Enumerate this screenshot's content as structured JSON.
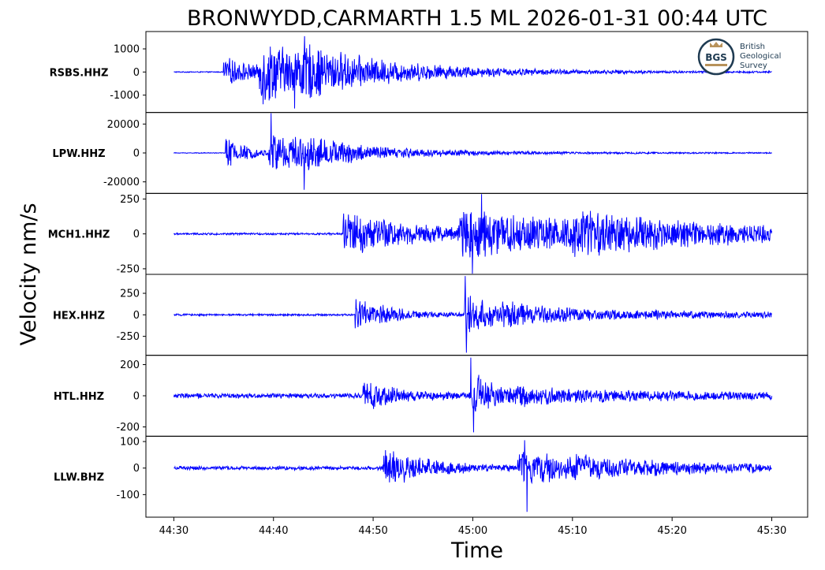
{
  "chart_data": {
    "type": "line",
    "title": "BRONWYDD,CARMARTH 1.5 ML   2026-01-31 00:44 UTC",
    "xlabel": "Time",
    "ylabel": "Velocity nm/s",
    "x_start_seconds": 0,
    "x_end_seconds": 60,
    "xlim_seconds": [
      -2.8,
      63.6
    ],
    "x_ticks": [
      {
        "value": 0,
        "label": "44:30"
      },
      {
        "value": 10,
        "label": "44:40"
      },
      {
        "value": 20,
        "label": "44:50"
      },
      {
        "value": 30,
        "label": "45:00"
      },
      {
        "value": 40,
        "label": "45:10"
      },
      {
        "value": 50,
        "label": "45:20"
      },
      {
        "value": 60,
        "label": "45:30"
      }
    ],
    "line_color": "#0000ff",
    "grid": false,
    "logo": {
      "abbr": "BGS",
      "lines": [
        "British",
        "Geological",
        "Survey"
      ]
    },
    "series": [
      {
        "name": "RSBS.HHZ",
        "ylim": [
          -1750,
          1750
        ],
        "y_ticks": [
          1000,
          0,
          -1000
        ],
        "noise": 25,
        "onset_seconds": 4.6,
        "bursts": [
          {
            "t": 5.0,
            "amp": 700,
            "decay": 4.0
          },
          {
            "t": 8.6,
            "amp": 1450,
            "decay": 7.0
          },
          {
            "t": 12.0,
            "amp": 600,
            "decay": 14.0
          }
        ],
        "peak_max": 1550,
        "peak_min": -1580
      },
      {
        "name": "LPW.HHZ",
        "ylim": [
          -28000,
          28000
        ],
        "y_ticks": [
          20000,
          0,
          -20000
        ],
        "noise": 300,
        "onset_seconds": 5.2,
        "bursts": [
          {
            "t": 5.2,
            "amp": 14000,
            "decay": 2.0
          },
          {
            "t": 9.5,
            "amp": 19000,
            "decay": 5.5
          },
          {
            "t": 13.0,
            "amp": 4500,
            "decay": 14.0
          }
        ],
        "peak_max": 27500,
        "peak_min": -25500
      },
      {
        "name": "MCH1.HHZ",
        "ylim": [
          -290,
          290
        ],
        "y_ticks": [
          250,
          0,
          -250
        ],
        "noise": 8,
        "onset_seconds": 16.8,
        "bursts": [
          {
            "t": 17.0,
            "amp": 190,
            "decay": 8.0
          },
          {
            "t": 28.5,
            "amp": 200,
            "decay": 14.0
          },
          {
            "t": 40.0,
            "amp": 90,
            "decay": 25.0
          }
        ],
        "peak_max": 285,
        "peak_min": -285
      },
      {
        "name": "HEX.HHZ",
        "ylim": [
          -470,
          470
        ],
        "y_ticks": [
          250,
          0,
          -250
        ],
        "noise": 12,
        "onset_seconds": 18.1,
        "bursts": [
          {
            "t": 18.2,
            "amp": 220,
            "decay": 4.0
          },
          {
            "t": 29.2,
            "amp": 280,
            "decay": 3.5
          },
          {
            "t": 33.0,
            "amp": 80,
            "decay": 25.0
          }
        ],
        "peak_max": 450,
        "peak_min": -440
      },
      {
        "name": "HTL.HHZ",
        "ylim": [
          -260,
          260
        ],
        "y_ticks": [
          200,
          0,
          -200
        ],
        "noise": 18,
        "onset_seconds": 18.9,
        "bursts": [
          {
            "t": 19.0,
            "amp": 90,
            "decay": 4.0
          },
          {
            "t": 29.8,
            "amp": 160,
            "decay": 3.0
          },
          {
            "t": 34.0,
            "amp": 35,
            "decay": 25.0
          }
        ],
        "peak_max": 245,
        "peak_min": -235
      },
      {
        "name": "LLW.BHZ",
        "ylim": [
          -185,
          120
        ],
        "y_ticks": [
          100,
          0,
          -100
        ],
        "noise": 8,
        "onset_seconds": 20.8,
        "bursts": [
          {
            "t": 21.0,
            "amp": 75,
            "decay": 5.0
          },
          {
            "t": 34.5,
            "amp": 80,
            "decay": 6.0
          },
          {
            "t": 40.0,
            "amp": 22,
            "decay": 25.0
          }
        ],
        "peak_max": 105,
        "peak_min": -165
      }
    ]
  }
}
